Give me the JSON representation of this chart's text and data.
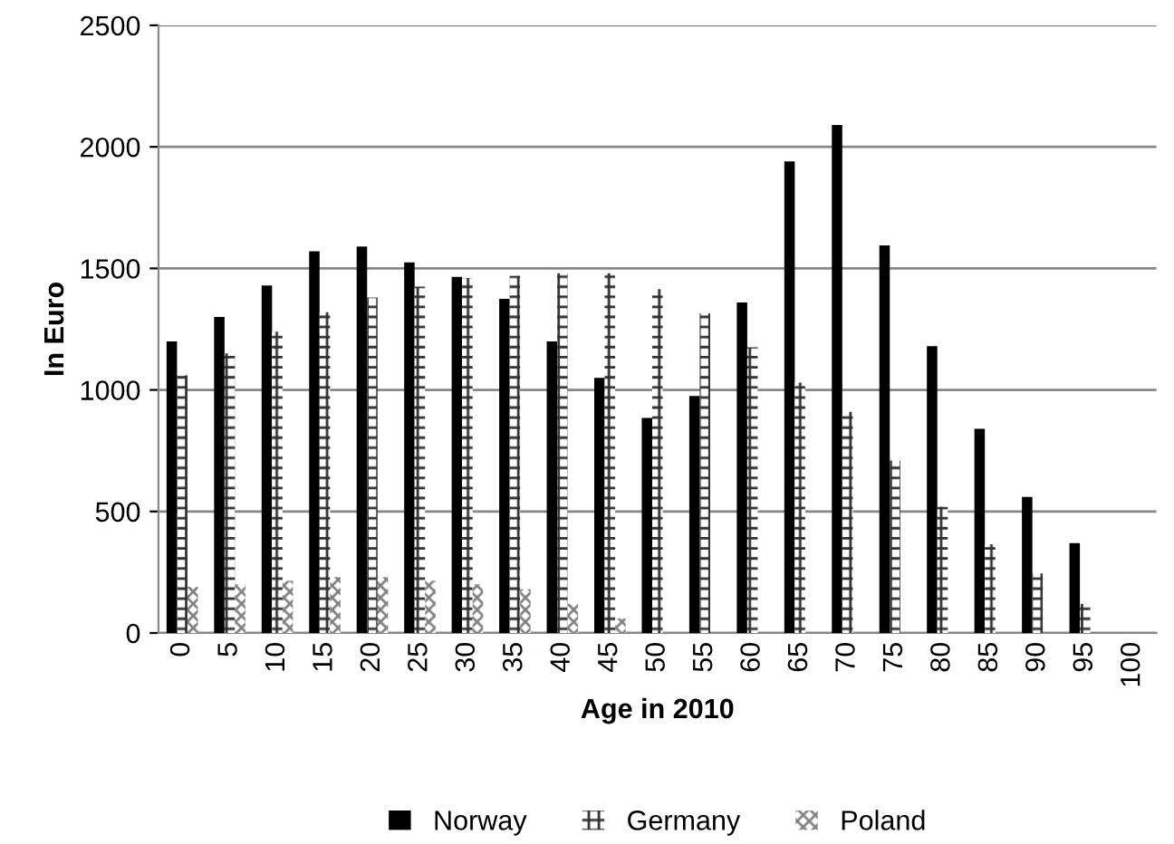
{
  "chart_data": {
    "type": "bar",
    "xlabel": "Age in 2010",
    "ylabel": "In Euro",
    "categories": [
      "0",
      "5",
      "10",
      "15",
      "20",
      "25",
      "30",
      "35",
      "40",
      "45",
      "50",
      "55",
      "60",
      "65",
      "70",
      "75",
      "80",
      "85",
      "90",
      "95",
      "100"
    ],
    "series": [
      {
        "name": "Norway",
        "color": "#000000",
        "values": [
          1200,
          1300,
          1430,
          1570,
          1590,
          1525,
          1465,
          1375,
          1200,
          1050,
          885,
          975,
          1360,
          1940,
          2090,
          1595,
          1180,
          840,
          560,
          370,
          null
        ]
      },
      {
        "name": "Germany",
        "color": "#303030",
        "values": [
          1060,
          1150,
          1240,
          1320,
          1380,
          1425,
          1460,
          1470,
          1480,
          1480,
          1415,
          1315,
          1175,
          1030,
          910,
          710,
          520,
          365,
          245,
          120,
          null
        ]
      },
      {
        "name": "Poland",
        "color": "#808080",
        "values": [
          190,
          200,
          215,
          230,
          230,
          215,
          200,
          180,
          120,
          60,
          null,
          null,
          null,
          null,
          null,
          null,
          null,
          null,
          null,
          null,
          null
        ]
      }
    ],
    "ylim": [
      0,
      2500
    ],
    "yticks": [
      0,
      500,
      1000,
      1500,
      2000,
      2500
    ],
    "grid": "y",
    "legend": "bottom"
  }
}
